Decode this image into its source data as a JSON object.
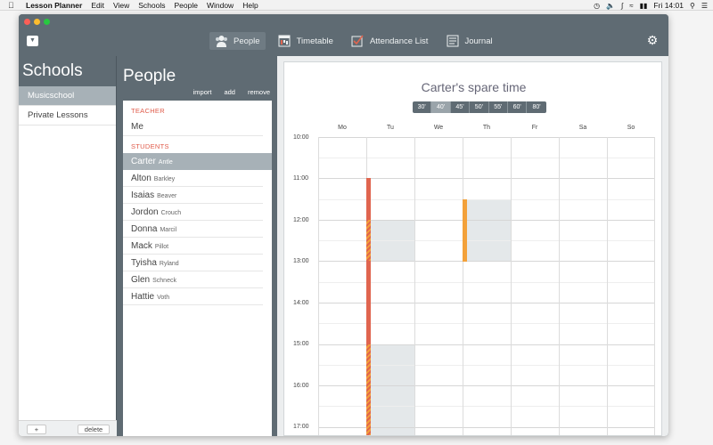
{
  "menubar": {
    "app_name": "Lesson Planner",
    "menus": [
      "Edit",
      "View",
      "Schools",
      "People",
      "Window",
      "Help"
    ],
    "clock": "Fri 14:01"
  },
  "toolbar": {
    "tabs": [
      {
        "label": "People",
        "icon": "people-icon",
        "active": true
      },
      {
        "label": "Timetable",
        "icon": "timetable-icon",
        "active": false
      },
      {
        "label": "Attendance List",
        "icon": "checkbox-icon",
        "active": false
      },
      {
        "label": "Journal",
        "icon": "journal-icon",
        "active": false
      }
    ]
  },
  "schools": {
    "title": "Schools",
    "items": [
      {
        "label": "Musicschool",
        "selected": true
      },
      {
        "label": "Private Lessons",
        "selected": false
      }
    ],
    "add_label": "+",
    "delete_label": "delete"
  },
  "people": {
    "title": "People",
    "actions": {
      "import": "import",
      "add": "add",
      "remove": "remove"
    },
    "teacher_label": "TEACHER",
    "teacher": "Me",
    "students_label": "STUDENTS",
    "students": [
      {
        "first": "Carter",
        "last": "Antle",
        "selected": true
      },
      {
        "first": "Alton",
        "last": "Barkley"
      },
      {
        "first": "Isaias",
        "last": "Beaver"
      },
      {
        "first": "Jordon",
        "last": "Crouch"
      },
      {
        "first": "Donna",
        "last": "Marcil"
      },
      {
        "first": "Mack",
        "last": "Pillot"
      },
      {
        "first": "Tyisha",
        "last": "Ryland"
      },
      {
        "first": "Glen",
        "last": "Schneck"
      },
      {
        "first": "Hattie",
        "last": "Voth"
      }
    ]
  },
  "calendar": {
    "title": "Carter's spare time",
    "durations": [
      "30'",
      "40'",
      "45'",
      "50'",
      "55'",
      "60'",
      "80'"
    ],
    "active_duration": "40'",
    "days": [
      "Mo",
      "Tu",
      "We",
      "Th",
      "Fr",
      "Sa",
      "So"
    ],
    "hours": [
      "10:00",
      "11:00",
      "12:00",
      "13:00",
      "14:00",
      "15:00",
      "16:00",
      "17:00"
    ],
    "colors": {
      "busy": "#e0654f",
      "partial": "#f3a13a",
      "free_block": "#e4e8ea"
    }
  }
}
